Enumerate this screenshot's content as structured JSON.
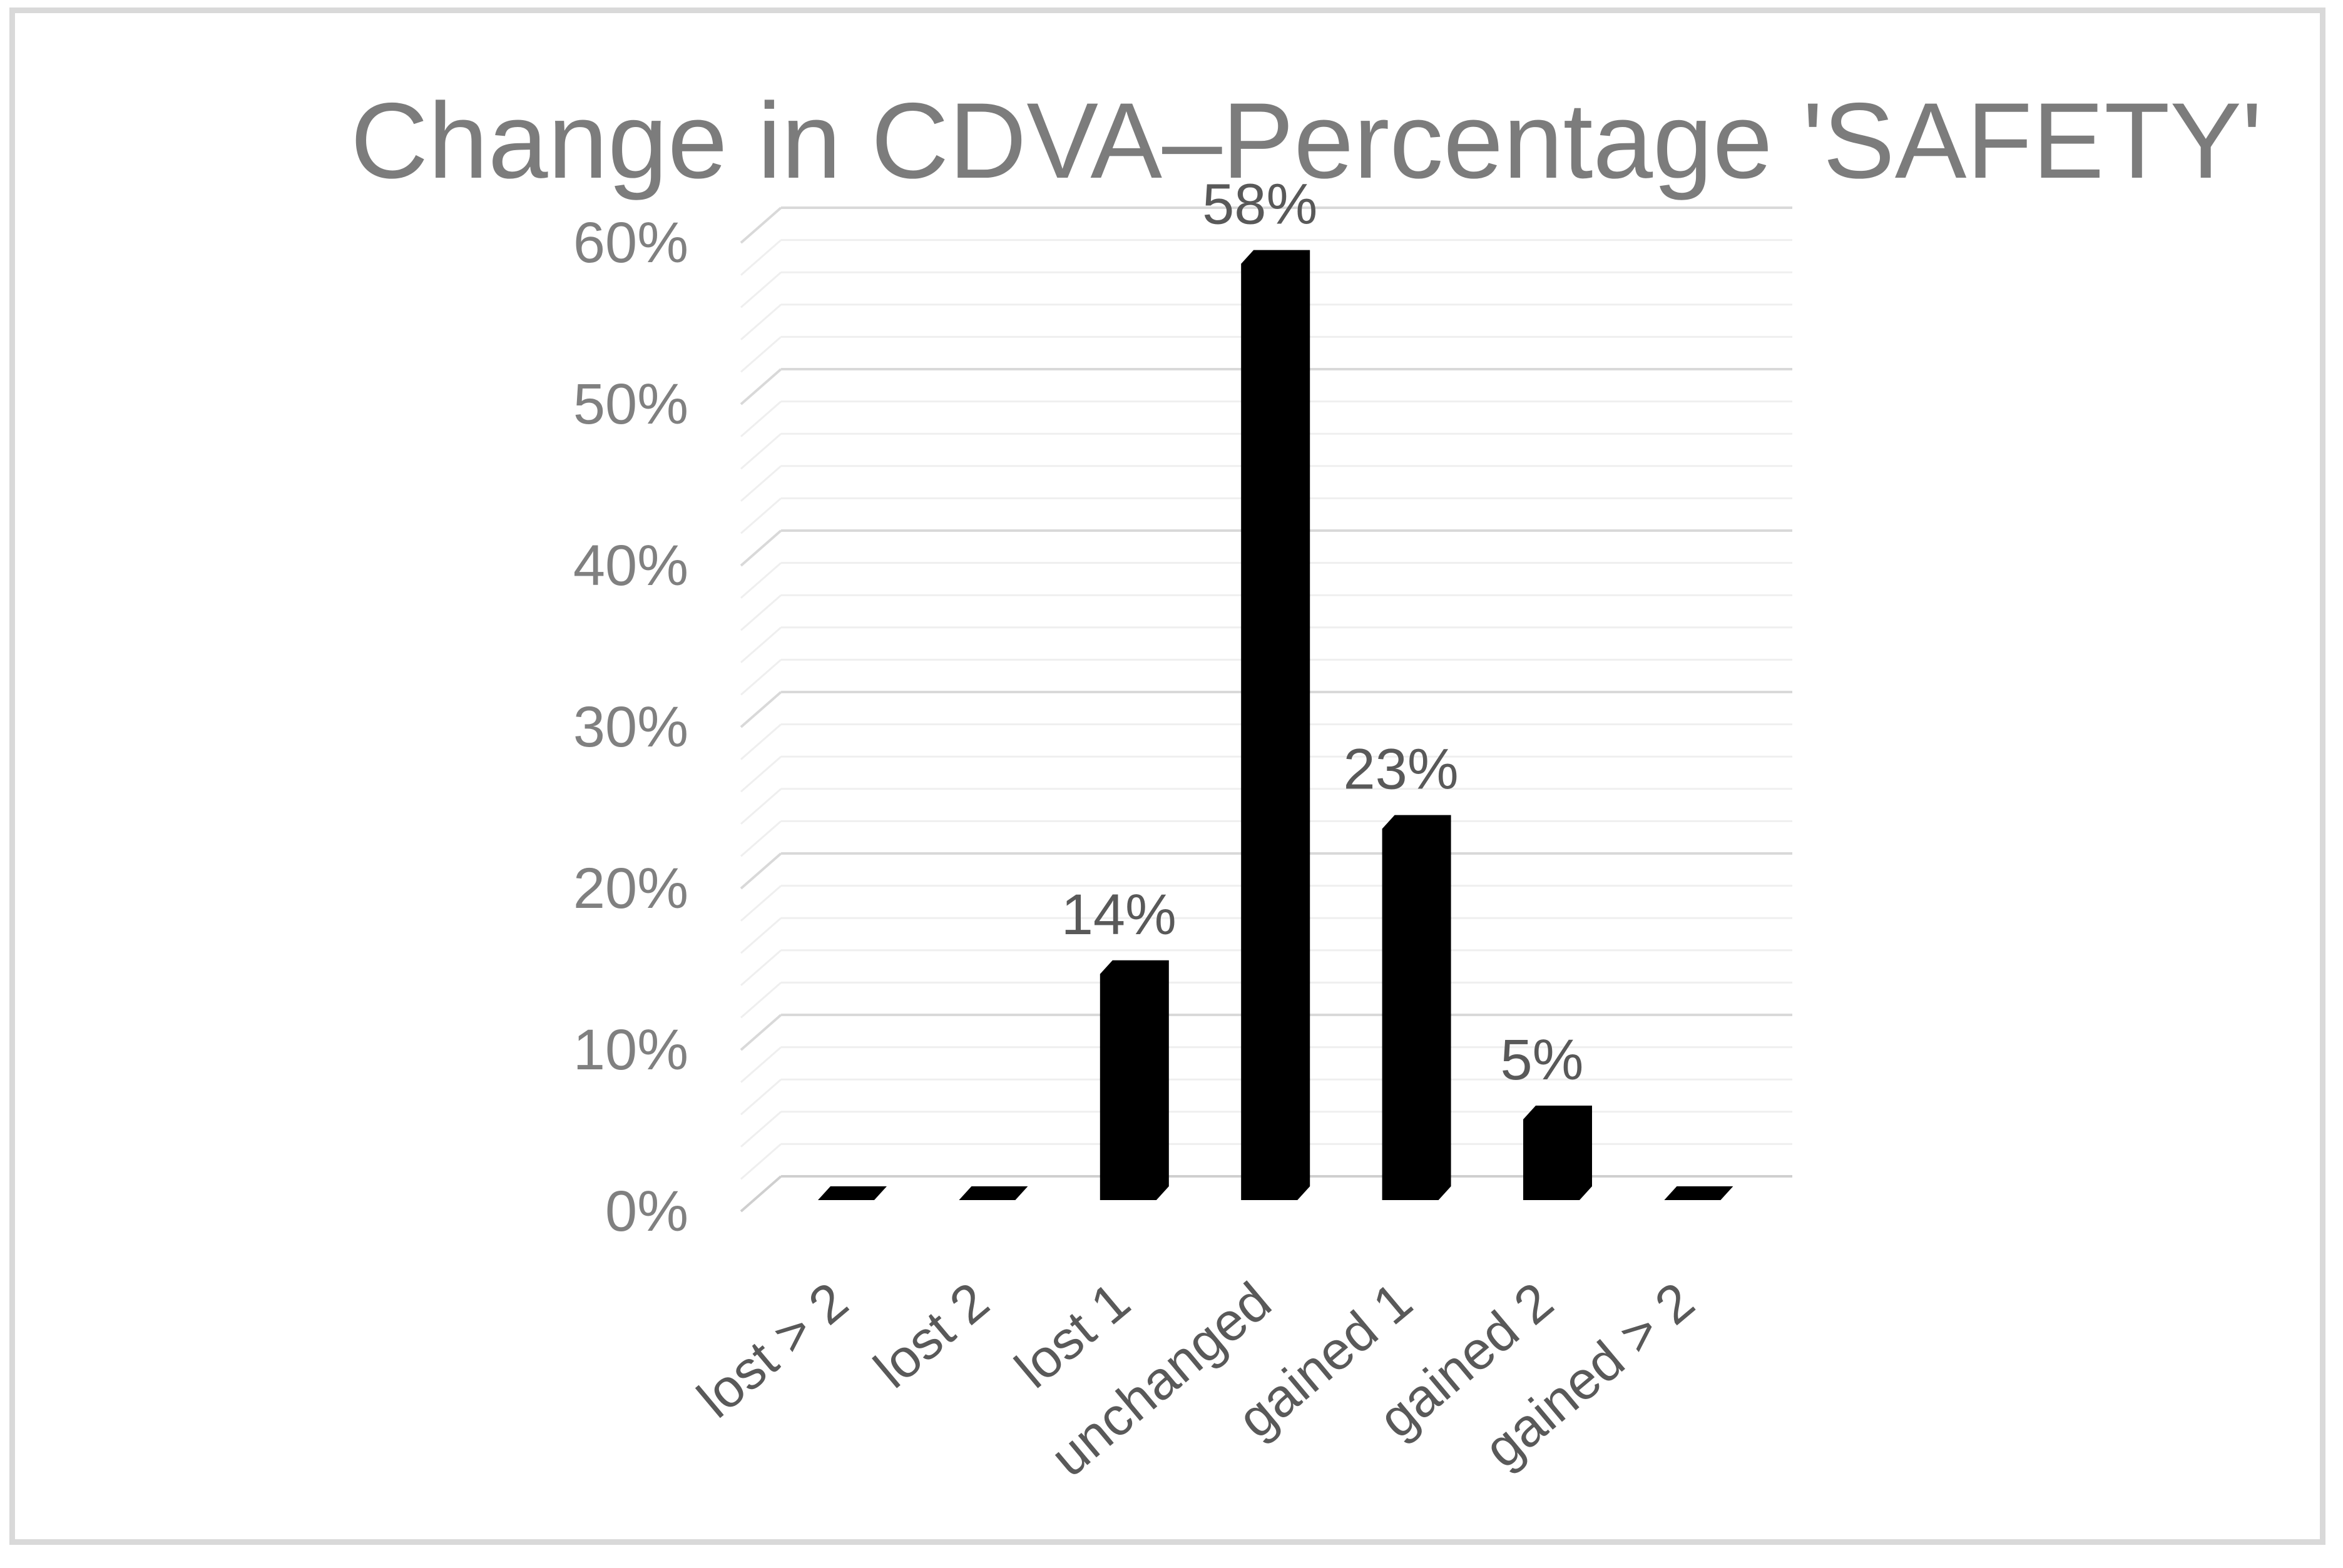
{
  "frame": {
    "border_color": "#d9d9d9"
  },
  "chart_data": {
    "type": "bar",
    "variant": "3d-column",
    "title": "Change in CDVA–Percentage 'SAFETY'",
    "categories": [
      "lost > 2",
      "lost 2",
      "lost 1",
      "unchanged",
      "gained 1",
      "gained 2",
      "gained > 2"
    ],
    "values": [
      0,
      0,
      14,
      58,
      23,
      5,
      0
    ],
    "data_labels": [
      "",
      "",
      "14%",
      "58%",
      "23%",
      "5%",
      ""
    ],
    "xlabel": "",
    "ylabel": "",
    "y_axis": {
      "ticks": [
        "0%",
        "10%",
        "20%",
        "30%",
        "40%",
        "50%",
        "60%"
      ],
      "min": 0,
      "max": 60,
      "major_unit": 10,
      "minor_unit": 2
    },
    "legend": "none",
    "grid": true,
    "colors": {
      "bar": "#000000",
      "title_text": "#7c7c7c",
      "axis_tick_text": "#808080",
      "category_text": "#595959",
      "data_label_text": "#595959",
      "major_gridline": "#d9d9d9",
      "minor_gridline": "#efefef",
      "zero_line": "#cfcfcf"
    }
  }
}
